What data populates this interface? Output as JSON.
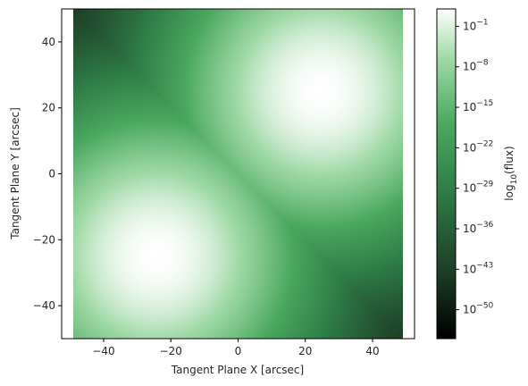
{
  "chart_data": {
    "type": "heatmap",
    "xlabel": "Tangent Plane X [arcsec]",
    "ylabel": "Tangent Plane Y [arcsec]",
    "xlim": [
      -52.5,
      52.5
    ],
    "ylim": [
      -50,
      50
    ],
    "image_extent": [
      -50,
      50,
      -50,
      50
    ],
    "x_ticks": [
      -40,
      -20,
      0,
      20,
      40
    ],
    "x_tick_labels": [
      "−40",
      "−20",
      "0",
      "20",
      "40"
    ],
    "y_ticks": [
      -40,
      -20,
      0,
      20,
      40
    ],
    "y_tick_labels": [
      "−40",
      "−20",
      "0",
      "20",
      "40"
    ],
    "sources": [
      {
        "x": -25,
        "y": -25
      },
      {
        "x": 25,
        "y": 25
      }
    ],
    "colormap": [
      "#000000",
      "#1d3d26",
      "#2f7d47",
      "#4aa85f",
      "#9fd9a6",
      "#ffffff"
    ],
    "colorbar": {
      "label_main": "log",
      "label_sub": "10",
      "label_tail": "(flux)",
      "scale": "log",
      "log_range": [
        -55,
        2
      ],
      "ticks": [
        {
          "base": "10",
          "exp": "−1",
          "value": -1
        },
        {
          "base": "10",
          "exp": "−8",
          "value": -8
        },
        {
          "base": "10",
          "exp": "−15",
          "value": -15
        },
        {
          "base": "10",
          "exp": "−22",
          "value": -22
        },
        {
          "base": "10",
          "exp": "−29",
          "value": -29
        },
        {
          "base": "10",
          "exp": "−36",
          "value": -36
        },
        {
          "base": "10",
          "exp": "−43",
          "value": -43
        },
        {
          "base": "10",
          "exp": "−50",
          "value": -50
        }
      ]
    }
  }
}
